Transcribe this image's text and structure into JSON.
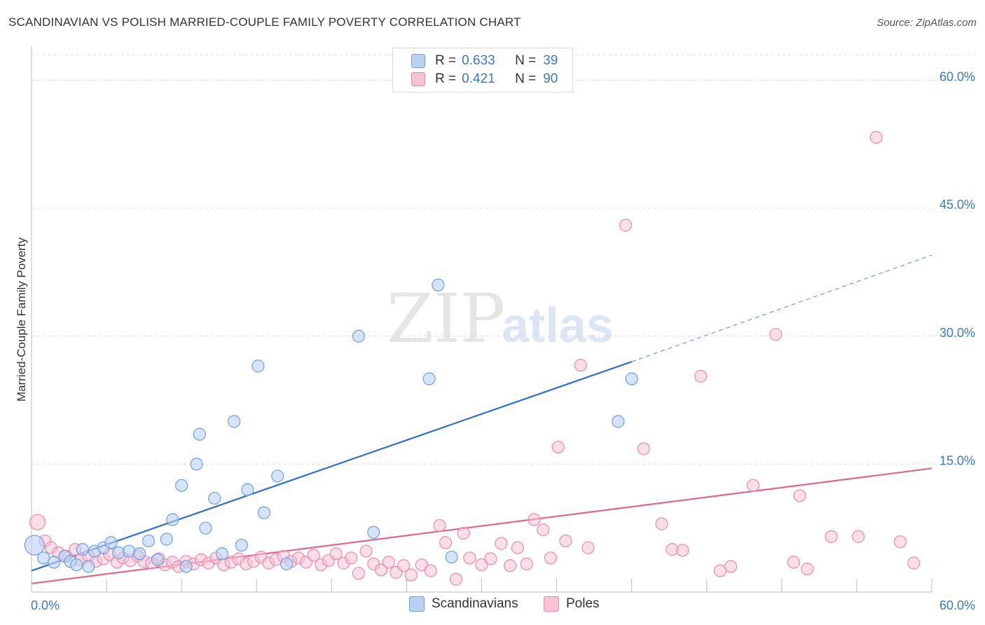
{
  "header": {
    "title": "SCANDINAVIAN VS POLISH MARRIED-COUPLE FAMILY POVERTY CORRELATION CHART",
    "source": "Source: ZipAtlas.com"
  },
  "watermark": {
    "zip": "ZIP",
    "atlas": "atlas"
  },
  "legend": {
    "rows": [
      {
        "r_label": "R =",
        "r_value": "0.633",
        "n_label": "N =",
        "n_value": "39"
      },
      {
        "r_label": "R =",
        "r_value": "0.421",
        "n_label": "N =",
        "n_value": "90"
      }
    ],
    "bottom": [
      "Scandinavians",
      "Poles"
    ]
  },
  "colors": {
    "blue_fill": "#b9d2f3",
    "blue_stroke": "#6e9fdc",
    "blue_line": "#2a6fd1",
    "pink_fill": "#f7c3d4",
    "pink_stroke": "#e98aab",
    "pink_line": "#e0668f",
    "axis_text": "#3a78c9",
    "grid": "#d9d9d9"
  },
  "chart_data": {
    "type": "scatter",
    "title": "SCANDINAVIAN VS POLISH MARRIED-COUPLE FAMILY POVERTY CORRELATION CHART",
    "xlabel": "",
    "ylabel": "Married-Couple Family Poverty",
    "xlim": [
      0,
      60
    ],
    "ylim": [
      0,
      63
    ],
    "x_tick_labels": [
      "0.0%",
      "60.0%"
    ],
    "y_ticks": [
      15,
      30,
      45,
      60
    ],
    "y_tick_labels": [
      "15.0%",
      "30.0%",
      "45.0%",
      "60.0%"
    ],
    "series": [
      {
        "name": "Scandinavians",
        "R": 0.633,
        "N": 39,
        "trend": {
          "x0": 0,
          "y0": 2.5,
          "x1": 40,
          "y1": 27.0,
          "dash_to_x": 60,
          "dash_to_y": 39.5
        },
        "points": [
          [
            0.2,
            5.5
          ],
          [
            0.8,
            4.0
          ],
          [
            1.5,
            3.5
          ],
          [
            2.2,
            4.2
          ],
          [
            2.6,
            3.6
          ],
          [
            3.0,
            3.2
          ],
          [
            3.4,
            5.0
          ],
          [
            3.8,
            3.0
          ],
          [
            4.2,
            4.8
          ],
          [
            4.8,
            5.2
          ],
          [
            5.3,
            5.8
          ],
          [
            5.8,
            4.6
          ],
          [
            6.5,
            4.8
          ],
          [
            7.2,
            4.5
          ],
          [
            7.8,
            6.0
          ],
          [
            8.4,
            3.8
          ],
          [
            9.0,
            6.2
          ],
          [
            9.4,
            8.5
          ],
          [
            10.0,
            12.5
          ],
          [
            10.3,
            3.0
          ],
          [
            11.0,
            15.0
          ],
          [
            11.2,
            18.5
          ],
          [
            11.6,
            7.5
          ],
          [
            12.2,
            11.0
          ],
          [
            12.7,
            4.5
          ],
          [
            13.5,
            20.0
          ],
          [
            14.0,
            5.5
          ],
          [
            14.4,
            12.0
          ],
          [
            15.1,
            26.5
          ],
          [
            15.5,
            9.3
          ],
          [
            16.4,
            13.6
          ],
          [
            17.0,
            3.3
          ],
          [
            21.8,
            30.0
          ],
          [
            22.8,
            7.0
          ],
          [
            26.5,
            25.0
          ],
          [
            27.1,
            36.0
          ],
          [
            28.0,
            4.1
          ],
          [
            39.1,
            20.0
          ],
          [
            40.0,
            25.0
          ]
        ]
      },
      {
        "name": "Poles",
        "R": 0.421,
        "N": 90,
        "trend": {
          "x0": 0,
          "y0": 1.0,
          "x1": 60,
          "y1": 14.5
        },
        "points": [
          [
            0.4,
            8.2
          ],
          [
            0.9,
            6.0
          ],
          [
            1.3,
            5.2
          ],
          [
            1.8,
            4.6
          ],
          [
            2.3,
            4.2
          ],
          [
            2.9,
            5.0
          ],
          [
            3.3,
            3.8
          ],
          [
            3.8,
            4.2
          ],
          [
            4.3,
            3.6
          ],
          [
            4.8,
            3.9
          ],
          [
            5.2,
            4.4
          ],
          [
            5.7,
            3.5
          ],
          [
            6.1,
            4.0
          ],
          [
            6.6,
            3.7
          ],
          [
            7.1,
            4.2
          ],
          [
            7.5,
            3.6
          ],
          [
            8.0,
            3.4
          ],
          [
            8.5,
            3.9
          ],
          [
            8.9,
            3.2
          ],
          [
            9.4,
            3.5
          ],
          [
            9.8,
            3.0
          ],
          [
            10.3,
            3.6
          ],
          [
            10.8,
            3.3
          ],
          [
            11.3,
            3.8
          ],
          [
            11.8,
            3.4
          ],
          [
            12.3,
            4.0
          ],
          [
            12.8,
            3.2
          ],
          [
            13.3,
            3.5
          ],
          [
            13.8,
            3.9
          ],
          [
            14.3,
            3.3
          ],
          [
            14.8,
            3.6
          ],
          [
            15.3,
            4.1
          ],
          [
            15.8,
            3.4
          ],
          [
            16.3,
            3.8
          ],
          [
            16.8,
            4.2
          ],
          [
            17.3,
            3.6
          ],
          [
            17.8,
            4.0
          ],
          [
            18.3,
            3.5
          ],
          [
            18.8,
            4.3
          ],
          [
            19.3,
            3.2
          ],
          [
            19.8,
            3.7
          ],
          [
            20.3,
            4.5
          ],
          [
            20.8,
            3.4
          ],
          [
            21.3,
            4.0
          ],
          [
            21.8,
            2.2
          ],
          [
            22.3,
            4.8
          ],
          [
            22.8,
            3.3
          ],
          [
            23.3,
            2.6
          ],
          [
            23.8,
            3.5
          ],
          [
            24.3,
            2.3
          ],
          [
            24.8,
            3.1
          ],
          [
            25.3,
            2.0
          ],
          [
            26.0,
            3.2
          ],
          [
            26.6,
            2.5
          ],
          [
            27.2,
            7.8
          ],
          [
            27.6,
            5.8
          ],
          [
            28.3,
            1.5
          ],
          [
            28.8,
            6.9
          ],
          [
            29.2,
            4.0
          ],
          [
            30.0,
            3.2
          ],
          [
            30.6,
            3.9
          ],
          [
            31.3,
            5.7
          ],
          [
            31.9,
            3.1
          ],
          [
            32.4,
            5.2
          ],
          [
            33.0,
            3.3
          ],
          [
            33.5,
            8.5
          ],
          [
            34.1,
            7.3
          ],
          [
            34.6,
            4.0
          ],
          [
            35.1,
            17.0
          ],
          [
            35.6,
            6.0
          ],
          [
            36.6,
            26.6
          ],
          [
            37.1,
            5.2
          ],
          [
            39.6,
            43.0
          ],
          [
            40.8,
            16.8
          ],
          [
            42.0,
            8.0
          ],
          [
            42.7,
            5.0
          ],
          [
            43.4,
            4.9
          ],
          [
            44.6,
            25.3
          ],
          [
            45.9,
            2.5
          ],
          [
            46.6,
            3.0
          ],
          [
            48.1,
            12.5
          ],
          [
            49.6,
            30.2
          ],
          [
            50.8,
            3.5
          ],
          [
            51.2,
            11.3
          ],
          [
            51.7,
            2.7
          ],
          [
            53.3,
            6.5
          ],
          [
            55.1,
            6.5
          ],
          [
            56.3,
            53.3
          ],
          [
            57.9,
            5.9
          ],
          [
            58.8,
            3.4
          ]
        ]
      }
    ]
  }
}
